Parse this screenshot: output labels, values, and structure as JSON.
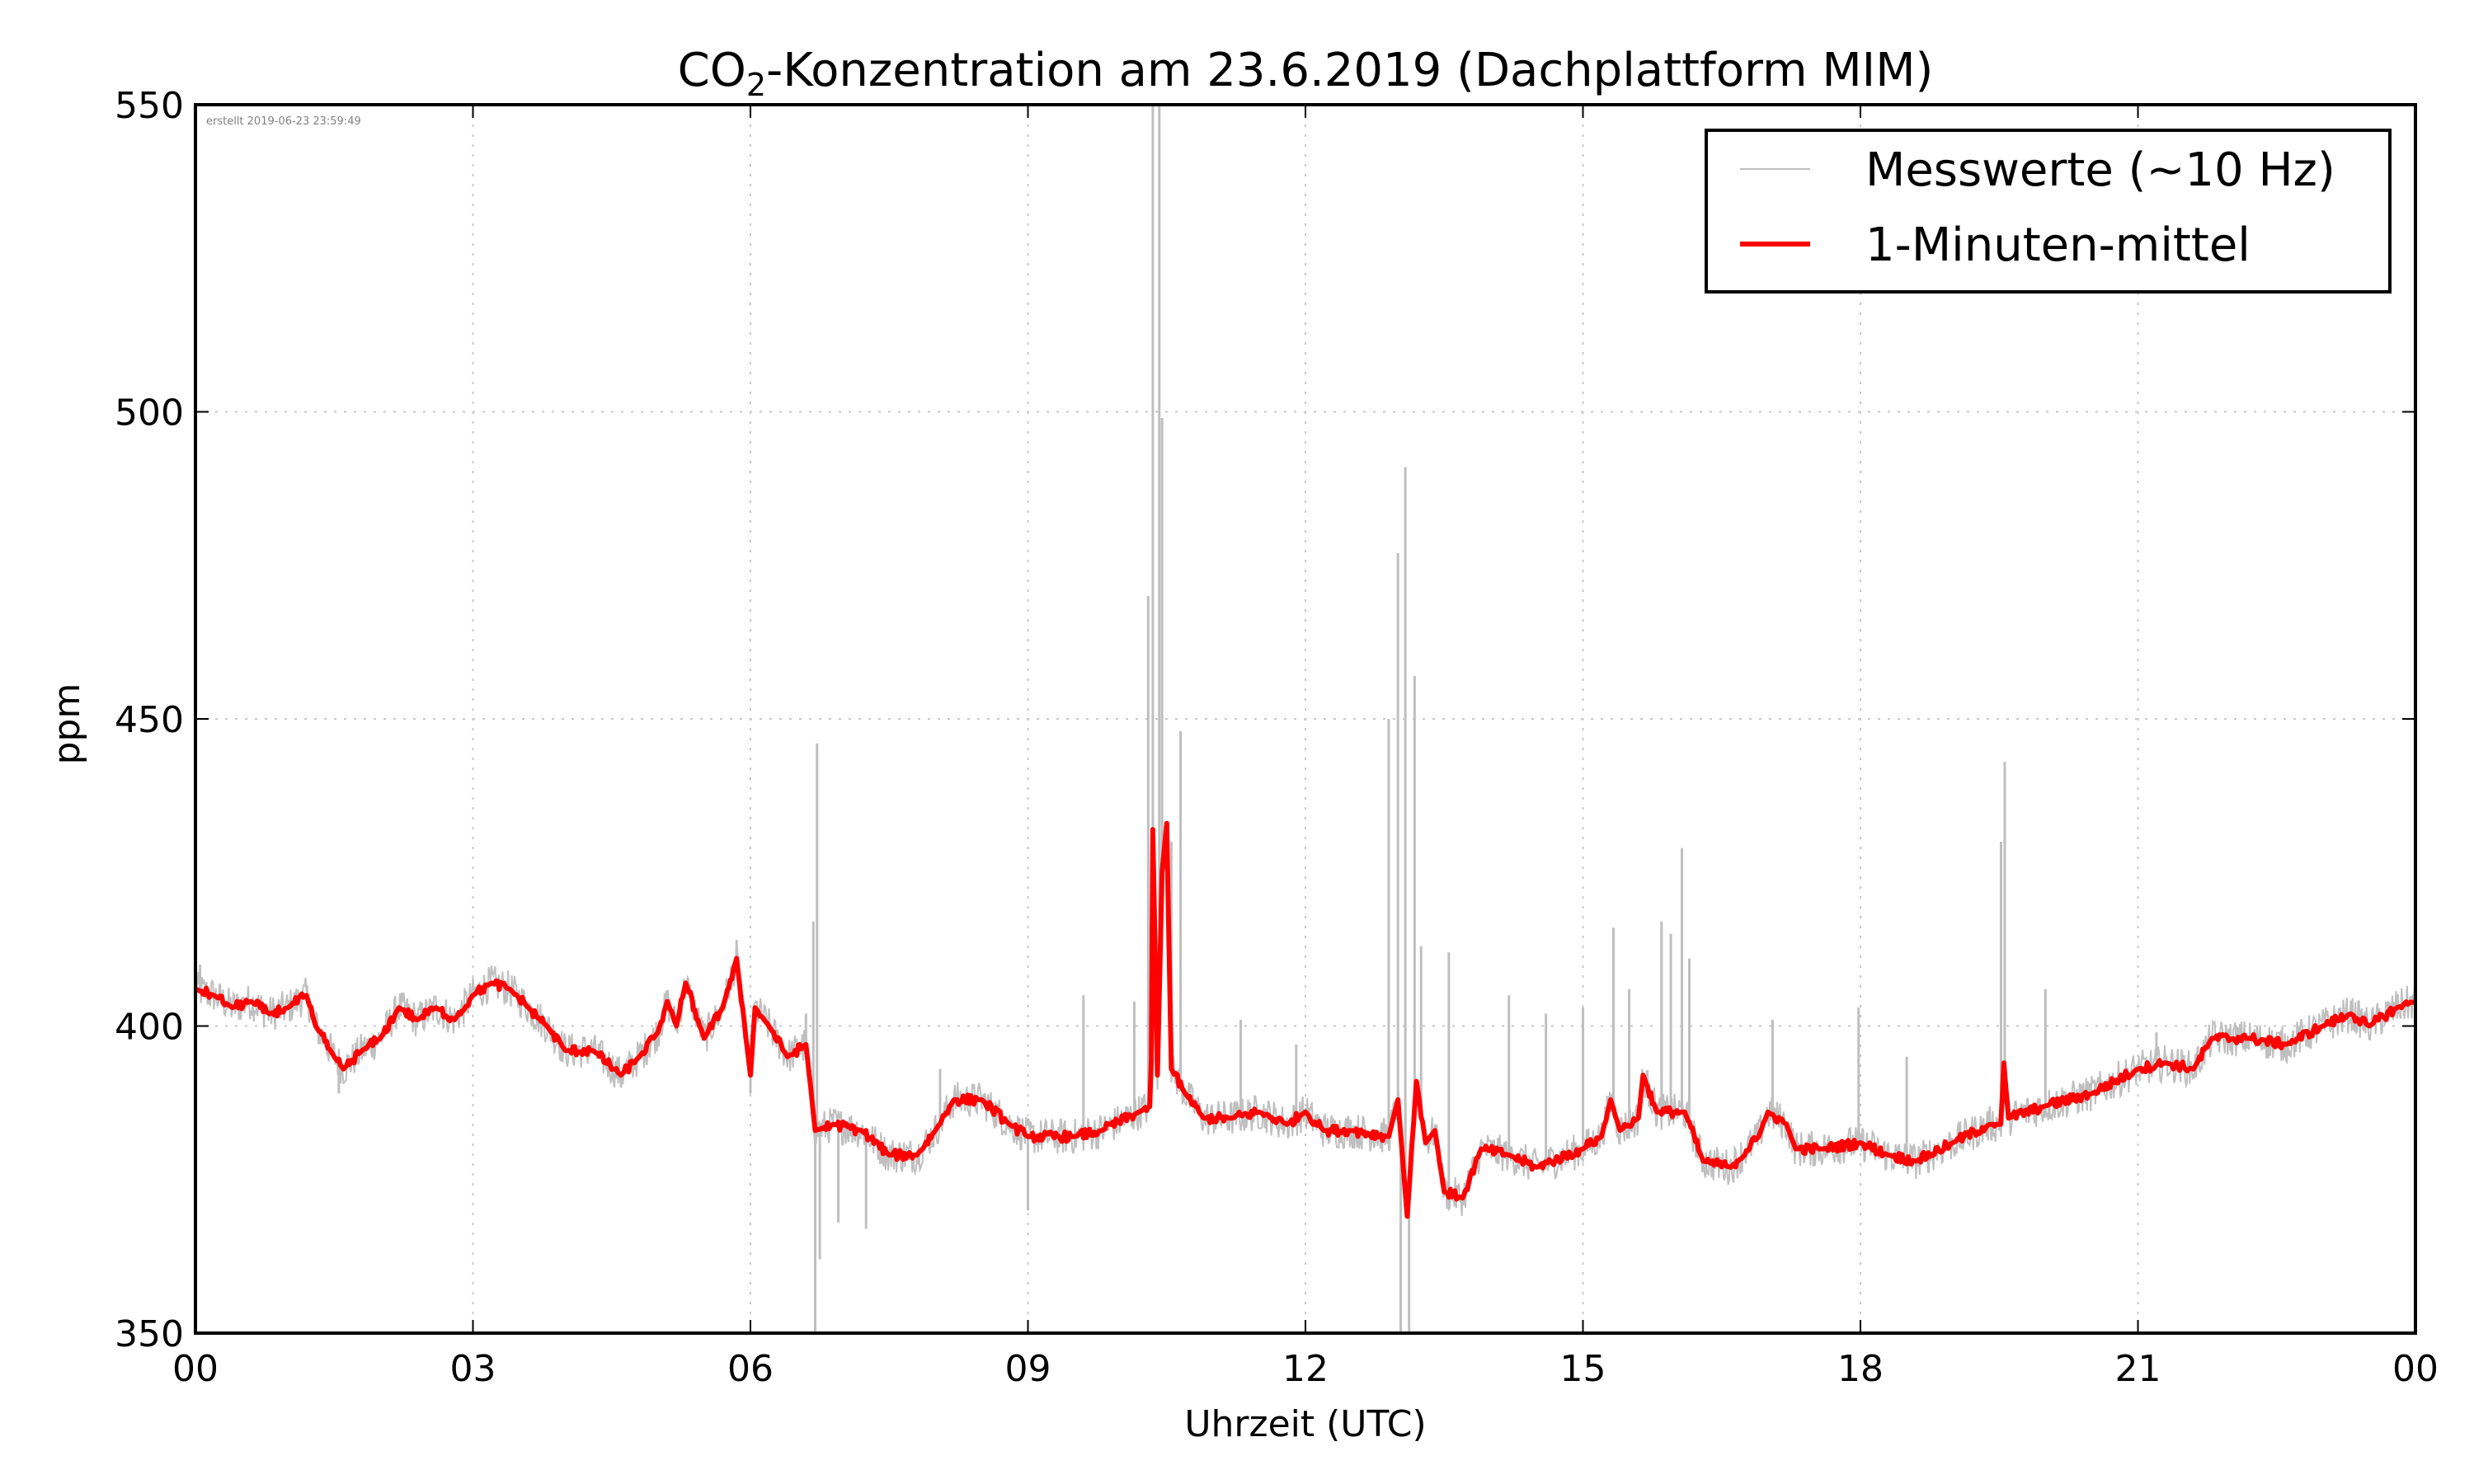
{
  "chart_data": {
    "type": "line",
    "title_prefix": "CO",
    "title_sub": "2",
    "title_suffix": "-Konzentration am 23.6.2019 (Dachplattform MIM)",
    "xlabel": "Uhrzeit (UTC)",
    "ylabel": "ppm",
    "xlim": [
      0,
      24
    ],
    "ylim": [
      350,
      550
    ],
    "x_ticks": [
      0,
      3,
      6,
      9,
      12,
      15,
      18,
      21,
      24
    ],
    "x_tick_labels": [
      "00",
      "03",
      "06",
      "09",
      "12",
      "15",
      "18",
      "21",
      "00"
    ],
    "y_ticks": [
      350,
      400,
      450,
      500,
      550
    ],
    "y_tick_labels": [
      "350",
      "400",
      "450",
      "500",
      "550"
    ],
    "grid": true,
    "legend_position": "top-right",
    "annotation": "erstellt 2019-06-23 23:59:49",
    "series": [
      {
        "name": "Messwerte (~10 Hz)",
        "color": "#bfbfbf",
        "noise_ppm": 3,
        "spikes": [
          [
            0.05,
            410
          ],
          [
            1.55,
            389
          ],
          [
            4.6,
            390
          ],
          [
            5.85,
            414
          ],
          [
            6.0,
            389
          ],
          [
            6.6,
            402
          ],
          [
            6.68,
            417
          ],
          [
            6.72,
            446
          ],
          [
            6.7,
            350
          ],
          [
            6.75,
            362
          ],
          [
            6.95,
            368
          ],
          [
            7.25,
            367
          ],
          [
            8.05,
            393
          ],
          [
            9.0,
            370
          ],
          [
            9.6,
            405
          ],
          [
            10.15,
            404
          ],
          [
            10.3,
            470
          ],
          [
            10.35,
            550
          ],
          [
            10.42,
            550
          ],
          [
            10.45,
            499
          ],
          [
            10.55,
            430
          ],
          [
            10.65,
            448
          ],
          [
            11.3,
            401
          ],
          [
            11.9,
            397
          ],
          [
            12.9,
            450
          ],
          [
            13.0,
            477
          ],
          [
            13.03,
            350
          ],
          [
            13.08,
            491
          ],
          [
            13.12,
            350
          ],
          [
            13.18,
            457
          ],
          [
            13.25,
            413
          ],
          [
            13.55,
            412
          ],
          [
            14.2,
            405
          ],
          [
            14.6,
            402
          ],
          [
            15.0,
            403
          ],
          [
            15.33,
            416
          ],
          [
            15.5,
            406
          ],
          [
            15.85,
            417
          ],
          [
            15.95,
            415
          ],
          [
            16.07,
            429
          ],
          [
            16.15,
            411
          ],
          [
            17.05,
            401
          ],
          [
            17.98,
            403
          ],
          [
            18.5,
            395
          ],
          [
            19.52,
            430
          ],
          [
            19.56,
            443
          ],
          [
            20.0,
            406
          ],
          [
            21.2,
            399
          ],
          [
            22.0,
            396
          ],
          [
            23.7,
            404
          ]
        ]
      },
      {
        "name": "1-Minuten-mittel",
        "color": "#ff0000",
        "points": [
          [
            0.0,
            406
          ],
          [
            0.2,
            405
          ],
          [
            0.4,
            403
          ],
          [
            0.6,
            404
          ],
          [
            0.8,
            402
          ],
          [
            1.0,
            403
          ],
          [
            1.2,
            405
          ],
          [
            1.3,
            400
          ],
          [
            1.5,
            395
          ],
          [
            1.6,
            393
          ],
          [
            1.8,
            396
          ],
          [
            2.0,
            398
          ],
          [
            2.2,
            403
          ],
          [
            2.4,
            401
          ],
          [
            2.6,
            403
          ],
          [
            2.8,
            401
          ],
          [
            3.0,
            405
          ],
          [
            3.2,
            407
          ],
          [
            3.4,
            406
          ],
          [
            3.6,
            403
          ],
          [
            3.8,
            400
          ],
          [
            4.0,
            396
          ],
          [
            4.3,
            396
          ],
          [
            4.6,
            392
          ],
          [
            4.8,
            395
          ],
          [
            5.0,
            399
          ],
          [
            5.1,
            404
          ],
          [
            5.2,
            400
          ],
          [
            5.3,
            407
          ],
          [
            5.5,
            398
          ],
          [
            5.7,
            403
          ],
          [
            5.85,
            411
          ],
          [
            6.0,
            392
          ],
          [
            6.05,
            403
          ],
          [
            6.2,
            400
          ],
          [
            6.4,
            395
          ],
          [
            6.6,
            397
          ],
          [
            6.7,
            383
          ],
          [
            6.9,
            384
          ],
          [
            7.2,
            383
          ],
          [
            7.5,
            379
          ],
          [
            7.8,
            379
          ],
          [
            8.0,
            383
          ],
          [
            8.2,
            388
          ],
          [
            8.5,
            388
          ],
          [
            8.8,
            384
          ],
          [
            9.0,
            382
          ],
          [
            9.5,
            382
          ],
          [
            9.8,
            383
          ],
          [
            10.2,
            386
          ],
          [
            10.33,
            387
          ],
          [
            10.35,
            432
          ],
          [
            10.4,
            392
          ],
          [
            10.45,
            425
          ],
          [
            10.5,
            433
          ],
          [
            10.55,
            393
          ],
          [
            10.7,
            389
          ],
          [
            10.9,
            385
          ],
          [
            11.2,
            385
          ],
          [
            11.5,
            386
          ],
          [
            11.8,
            384
          ],
          [
            12.0,
            386
          ],
          [
            12.2,
            383
          ],
          [
            12.5,
            383
          ],
          [
            12.9,
            382
          ],
          [
            13.0,
            388
          ],
          [
            13.1,
            369
          ],
          [
            13.2,
            391
          ],
          [
            13.3,
            381
          ],
          [
            13.4,
            383
          ],
          [
            13.5,
            373
          ],
          [
            13.7,
            372
          ],
          [
            13.9,
            380
          ],
          [
            14.2,
            379
          ],
          [
            14.5,
            377
          ],
          [
            15.0,
            380
          ],
          [
            15.2,
            382
          ],
          [
            15.3,
            388
          ],
          [
            15.4,
            383
          ],
          [
            15.6,
            385
          ],
          [
            15.65,
            392
          ],
          [
            15.8,
            386
          ],
          [
            16.1,
            386
          ],
          [
            16.3,
            378
          ],
          [
            16.6,
            377
          ],
          [
            16.9,
            382
          ],
          [
            17.0,
            386
          ],
          [
            17.2,
            384
          ],
          [
            17.3,
            380
          ],
          [
            17.6,
            380
          ],
          [
            18.0,
            381
          ],
          [
            18.3,
            379
          ],
          [
            18.6,
            378
          ],
          [
            19.0,
            381
          ],
          [
            19.4,
            384
          ],
          [
            19.52,
            384
          ],
          [
            19.55,
            394
          ],
          [
            19.6,
            385
          ],
          [
            20.0,
            387
          ],
          [
            20.5,
            389
          ],
          [
            21.0,
            393
          ],
          [
            21.3,
            394
          ],
          [
            21.6,
            393
          ],
          [
            21.8,
            398
          ],
          [
            22.2,
            398
          ],
          [
            22.6,
            397
          ],
          [
            23.0,
            400
          ],
          [
            23.3,
            402
          ],
          [
            23.5,
            400
          ],
          [
            23.8,
            403
          ],
          [
            24.0,
            404
          ]
        ]
      }
    ]
  }
}
